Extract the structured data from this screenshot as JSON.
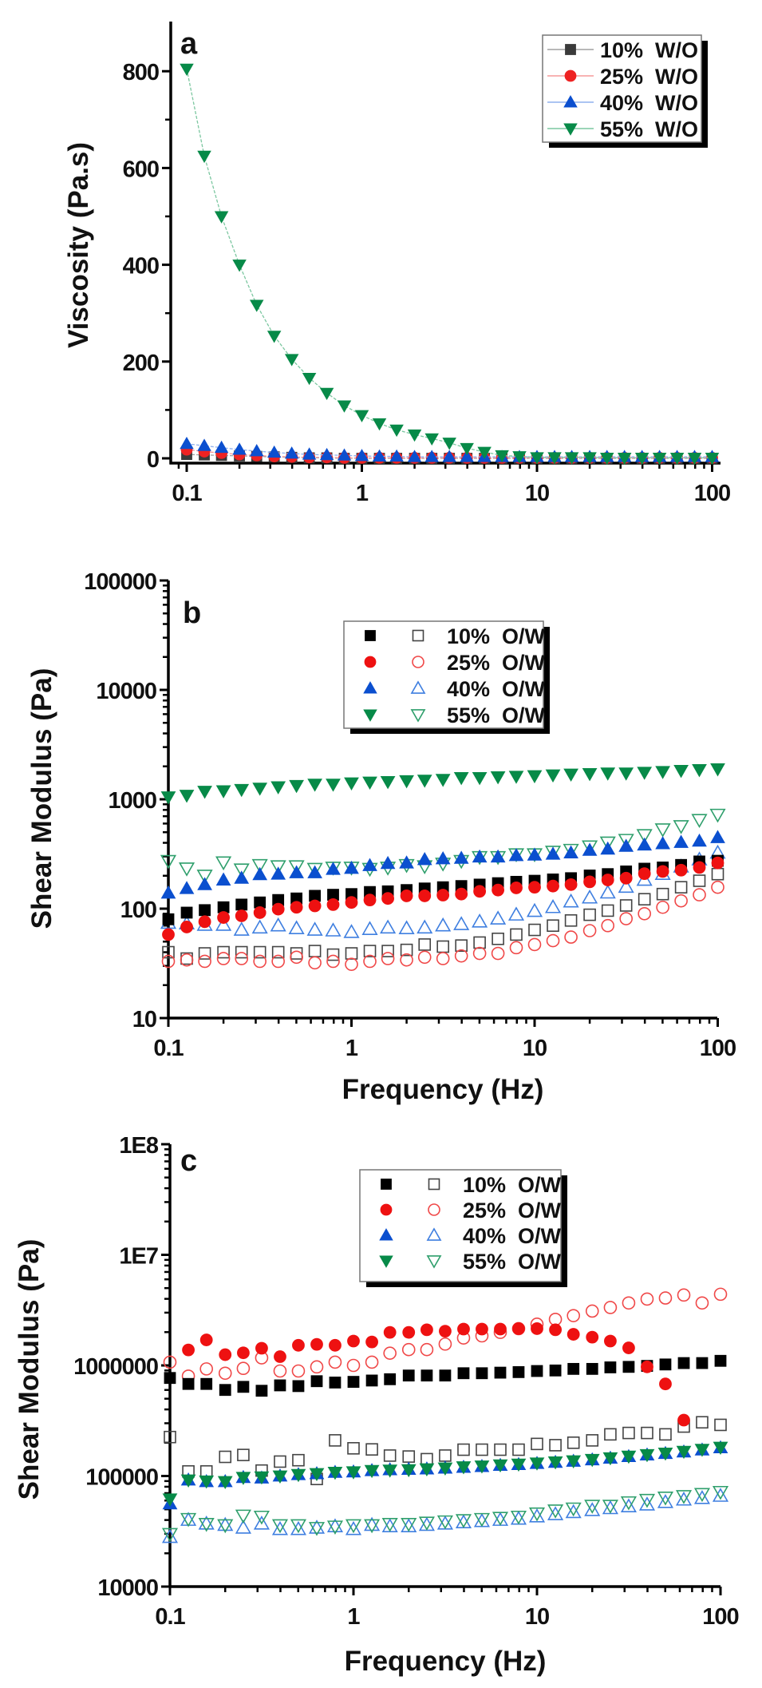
{
  "chart_data": [
    {
      "type": "line",
      "panel_label": "a",
      "xlabel": "",
      "ylabel": "Viscosity (Pa.s)",
      "x_scale": "log",
      "y_scale": "linear",
      "xlim": [
        0.081,
        104
      ],
      "ylim": [
        -10,
        900
      ],
      "x_ticks": [
        0.1,
        1,
        10,
        100
      ],
      "x_tick_labels": [
        "0.1",
        "1",
        "10",
        "100"
      ],
      "y_ticks": [
        0,
        200,
        400,
        600,
        800
      ],
      "y_tick_labels": [
        "0",
        "200",
        "400",
        "600",
        "800"
      ],
      "grid": false,
      "legend_position": "top-right",
      "x": [
        0.1,
        0.126,
        0.158,
        0.2,
        0.251,
        0.316,
        0.398,
        0.501,
        0.631,
        0.794,
        1,
        1.26,
        1.58,
        2,
        2.51,
        3.16,
        3.98,
        5.01,
        6.31,
        7.94,
        10,
        12.6,
        15.8,
        20,
        25.1,
        31.6,
        39.8,
        50.1,
        63.1,
        79.4,
        100
      ],
      "series": [
        {
          "name": "10%  W/O",
          "marker": "square",
          "fill": "filled",
          "color": "#3a3a3a",
          "line_color": "#a0a0a0",
          "values": [
            8,
            7,
            6,
            5,
            4,
            3,
            2,
            1,
            1,
            0,
            0,
            0,
            0,
            0,
            0,
            0,
            0,
            0,
            0,
            0,
            0,
            0,
            0,
            0,
            0,
            0,
            0,
            0,
            0,
            0,
            0
          ]
        },
        {
          "name": "25%  W/O",
          "marker": "circle",
          "fill": "filled",
          "color": "#ee2222",
          "line_color": "#f59a9a",
          "values": [
            18,
            14,
            11,
            8,
            6,
            4,
            3,
            2,
            2,
            1,
            1,
            1,
            1,
            1,
            1,
            1,
            1,
            1,
            1,
            1,
            1,
            1,
            1,
            1,
            1,
            1,
            1,
            1,
            1,
            1,
            1
          ]
        },
        {
          "name": "40%  W/O",
          "marker": "triangle-up",
          "fill": "filled",
          "color": "#0b4fcf",
          "line_color": "#8fb0ee",
          "values": [
            30,
            26,
            22,
            18,
            15,
            12,
            10,
            8,
            7,
            6,
            5,
            4,
            4,
            3,
            3,
            3,
            3,
            3,
            3,
            3,
            3,
            3,
            3,
            3,
            3,
            3,
            3,
            3,
            3,
            3,
            3
          ]
        },
        {
          "name": "55%  W/O",
          "marker": "triangle-down",
          "fill": "filled",
          "color": "#078a48",
          "line_color": "#7cc7a0",
          "values": [
            805,
            625,
            500,
            400,
            317,
            253,
            205,
            166,
            135,
            109,
            89,
            72,
            59,
            49,
            41,
            32,
            21,
            13,
            6,
            4,
            2,
            2,
            2,
            2,
            1,
            1,
            1,
            1,
            1,
            1,
            1
          ]
        }
      ]
    },
    {
      "type": "scatter",
      "panel_label": "b",
      "xlabel": "Frequency (Hz)",
      "ylabel": "Shear Modulus (Pa)",
      "x_scale": "log",
      "y_scale": "log",
      "xlim": [
        0.1,
        100
      ],
      "ylim": [
        10,
        100000
      ],
      "x_ticks": [
        0.1,
        1,
        10,
        100
      ],
      "x_tick_labels": [
        "0.1",
        "1",
        "10",
        "100"
      ],
      "y_ticks": [
        10,
        100,
        1000,
        10000,
        100000
      ],
      "y_tick_labels": [
        "10",
        "100",
        "1000",
        "10000",
        "100000"
      ],
      "grid": false,
      "legend_position": "upper-middle",
      "legend_entries": [
        "10%  O/W",
        "25%  O/W",
        "40%  O/W",
        "55%  O/W"
      ],
      "x": [
        0.1,
        0.126,
        0.158,
        0.2,
        0.251,
        0.316,
        0.398,
        0.501,
        0.631,
        0.794,
        1,
        1.26,
        1.58,
        2,
        2.51,
        3.16,
        3.98,
        5.01,
        6.31,
        7.94,
        10,
        12.6,
        15.8,
        20,
        25.1,
        31.6,
        39.8,
        50.1,
        63.1,
        79.4,
        100
      ],
      "series": [
        {
          "name": "10%  O/W",
          "marker": "square",
          "fill": "open",
          "color": "#444444",
          "values": [
            40,
            35,
            39,
            40,
            40,
            40,
            40,
            39,
            41,
            38,
            39,
            41,
            41,
            42,
            47,
            45,
            46,
            49,
            53,
            58,
            64,
            70,
            78,
            88,
            96,
            107,
            122,
            136,
            157,
            180,
            207
          ]
        },
        {
          "name": "25%  O/W",
          "marker": "circle",
          "fill": "open",
          "color": "#f04848",
          "values": [
            33,
            34,
            33,
            35,
            35,
            33,
            33,
            36,
            32,
            33,
            31,
            33,
            35,
            34,
            36,
            35,
            37,
            39,
            39,
            44,
            47,
            51,
            55,
            63,
            70,
            81,
            90,
            103,
            118,
            134,
            157
          ]
        },
        {
          "name": "40%  O/W",
          "marker": "triangle-up",
          "fill": "open",
          "color": "#3f7fe0",
          "values": [
            74,
            73,
            71,
            71,
            64,
            67,
            70,
            66,
            64,
            63,
            61,
            65,
            67,
            66,
            67,
            70,
            72,
            76,
            81,
            88,
            95,
            103,
            116,
            126,
            140,
            158,
            183,
            207,
            242,
            281,
            324
          ]
        },
        {
          "name": "55%  O/W",
          "marker": "triangle-down",
          "fill": "open",
          "color": "#2f9f6c",
          "values": [
            274,
            234,
            201,
            266,
            229,
            251,
            245,
            245,
            232,
            238,
            238,
            232,
            238,
            251,
            245,
            259,
            274,
            297,
            297,
            315,
            315,
            333,
            346,
            372,
            404,
            427,
            472,
            533,
            570,
            649,
            725
          ]
        },
        {
          "name": "10%  O/W",
          "marker": "square",
          "fill": "filled",
          "color": "#000000",
          "values": [
            80,
            92,
            97,
            103,
            109,
            114,
            120,
            124,
            131,
            134,
            136,
            142,
            144,
            148,
            153,
            157,
            161,
            166,
            171,
            176,
            180,
            185,
            190,
            201,
            207,
            219,
            232,
            238,
            251,
            270,
            274
          ]
        },
        {
          "name": "25%  O/W",
          "marker": "circle",
          "fill": "filled",
          "color": "#ee1111",
          "values": [
            58,
            68,
            76,
            83,
            86,
            92,
            99,
            103,
            106,
            109,
            114,
            120,
            124,
            131,
            131,
            133,
            136,
            144,
            148,
            155,
            157,
            161,
            166,
            176,
            183,
            190,
            209,
            219,
            225,
            238,
            262
          ]
        },
        {
          "name": "40%  O/W",
          "marker": "triangle-up",
          "fill": "filled",
          "color": "#0b4fcf",
          "values": [
            139,
            153,
            166,
            183,
            190,
            205,
            207,
            213,
            213,
            229,
            234,
            248,
            259,
            262,
            281,
            286,
            289,
            297,
            297,
            306,
            309,
            315,
            324,
            342,
            351,
            372,
            382,
            393,
            404,
            415,
            447
          ]
        },
        {
          "name": "55%  O/W",
          "marker": "triangle-down",
          "fill": "filled",
          "color": "#078a48",
          "values": [
            1050,
            1087,
            1182,
            1195,
            1228,
            1263,
            1299,
            1335,
            1373,
            1373,
            1412,
            1435,
            1451,
            1476,
            1493,
            1518,
            1578,
            1578,
            1605,
            1622,
            1640,
            1668,
            1697,
            1715,
            1735,
            1735,
            1764,
            1793,
            1833,
            1864,
            1895
          ]
        }
      ]
    },
    {
      "type": "scatter",
      "panel_label": "c",
      "xlabel": "Frequency (Hz)",
      "ylabel": "Shear Modulus (Pa)",
      "x_scale": "log",
      "y_scale": "log",
      "xlim": [
        0.1,
        100
      ],
      "ylim": [
        10000,
        100000000
      ],
      "x_ticks": [
        0.1,
        1,
        10,
        100
      ],
      "x_tick_labels": [
        "0.1",
        "1",
        "10",
        "100"
      ],
      "y_ticks": [
        10000,
        100000,
        1000000,
        10000000,
        100000000
      ],
      "y_tick_labels": [
        "10000",
        "100000",
        "1000000",
        "1E7",
        "1E8"
      ],
      "grid": false,
      "legend_position": "upper-middle",
      "legend_entries": [
        "10%  O/W",
        "25%  O/W",
        "40%  O/W",
        "55%  O/W"
      ],
      "x": [
        0.1,
        0.126,
        0.158,
        0.2,
        0.251,
        0.316,
        0.398,
        0.501,
        0.631,
        0.794,
        1,
        1.26,
        1.58,
        2,
        2.51,
        3.16,
        3.98,
        5.01,
        6.31,
        7.94,
        10,
        12.6,
        15.8,
        20,
        25.1,
        31.6,
        39.8,
        50.1,
        63.1,
        79.4,
        100
      ],
      "series": [
        {
          "name": "10%  O/W",
          "marker": "square",
          "fill": "open",
          "color": "#444444",
          "values": [
            225000,
            110000,
            110000,
            149000,
            155000,
            112000,
            135000,
            139000,
            94000,
            210000,
            178000,
            174000,
            153000,
            150000,
            142000,
            153000,
            173000,
            173000,
            173000,
            173000,
            195000,
            190000,
            200000,
            210000,
            238000,
            245000,
            245000,
            238000,
            280000,
            306000,
            290000
          ]
        },
        {
          "name": "25%  O/W",
          "marker": "circle",
          "fill": "open",
          "color": "#f04848",
          "values": [
            1070000,
            800000,
            930000,
            850000,
            940000,
            1170000,
            890000,
            890000,
            970000,
            1070000,
            1000000,
            1070000,
            1290000,
            1390000,
            1390000,
            1560000,
            1770000,
            1850000,
            1990000,
            2150000,
            2360000,
            2610000,
            2820000,
            3100000,
            3340000,
            3670000,
            3980000,
            4070000,
            4330000,
            3670000,
            4400000
          ]
        },
        {
          "name": "40%  O/W",
          "marker": "triangle-up",
          "fill": "open",
          "color": "#3f7fe0",
          "values": [
            28000,
            40000,
            37000,
            36000,
            34000,
            37000,
            33000,
            33000,
            34000,
            35000,
            33000,
            36000,
            35000,
            35000,
            36000,
            37000,
            38000,
            39000,
            40000,
            41000,
            43000,
            45000,
            47000,
            49000,
            51000,
            53000,
            55000,
            58000,
            61000,
            63000,
            66000
          ]
        },
        {
          "name": "55%  O/W",
          "marker": "triangle-down",
          "fill": "open",
          "color": "#2f9f6c",
          "values": [
            30000,
            41000,
            37000,
            36000,
            44000,
            43000,
            36000,
            36000,
            34000,
            35000,
            36000,
            36000,
            37000,
            37000,
            38000,
            39000,
            40000,
            41000,
            42000,
            43000,
            46000,
            49000,
            51000,
            54000,
            54000,
            58000,
            61000,
            64000,
            66000,
            69000,
            72000
          ]
        },
        {
          "name": "10%  O/W",
          "marker": "square",
          "fill": "filled",
          "color": "#000000",
          "values": [
            770000,
            680000,
            680000,
            600000,
            640000,
            590000,
            660000,
            650000,
            720000,
            700000,
            710000,
            730000,
            750000,
            810000,
            810000,
            810000,
            850000,
            850000,
            860000,
            870000,
            890000,
            900000,
            930000,
            930000,
            960000,
            970000,
            990000,
            1020000,
            1050000,
            1050000,
            1100000
          ]
        },
        {
          "name": "25%  O/W",
          "marker": "circle",
          "fill": "filled",
          "color": "#ee1111",
          "values": [
            null,
            1380000,
            1700000,
            1250000,
            1300000,
            1430000,
            1200000,
            1520000,
            1550000,
            1520000,
            1660000,
            1630000,
            1990000,
            1990000,
            2100000,
            2040000,
            2130000,
            2130000,
            2130000,
            2150000,
            2150000,
            2100000,
            1910000,
            1800000,
            1660000,
            1440000,
            970000,
            680000,
            320000,
            null,
            null
          ]
        },
        {
          "name": "40%  O/W",
          "marker": "triangle-up",
          "fill": "filled",
          "color": "#0b4fcf",
          "values": [
            56000,
            92000,
            89000,
            89000,
            97000,
            96000,
            100000,
            103000,
            105000,
            108000,
            109000,
            112000,
            114000,
            115000,
            116000,
            118000,
            120000,
            122000,
            125000,
            127000,
            130000,
            133000,
            136000,
            140000,
            145000,
            150000,
            155000,
            160000,
            165000,
            172000,
            180000
          ]
        },
        {
          "name": "55%  O/W",
          "marker": "triangle-down",
          "fill": "filled",
          "color": "#078a48",
          "values": [
            62000,
            92000,
            90000,
            89000,
            97000,
            98000,
            100000,
            103000,
            105000,
            108000,
            109000,
            112000,
            113000,
            114000,
            116000,
            118000,
            121000,
            123000,
            126000,
            128000,
            131000,
            134000,
            137000,
            141000,
            146000,
            151000,
            156000,
            161000,
            167000,
            174000,
            182000
          ]
        }
      ]
    }
  ]
}
